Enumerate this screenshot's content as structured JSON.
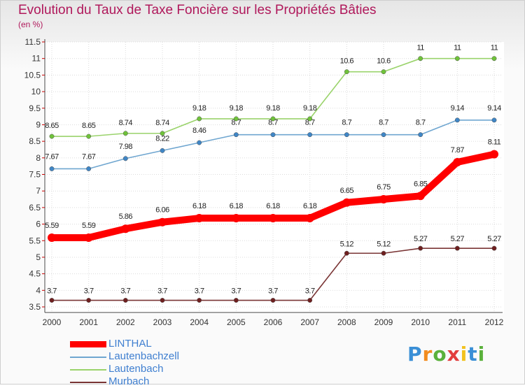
{
  "title": "Evolution du Taux de Taxe Foncière sur les Propriétés Bâties",
  "unit_label": "(en %)",
  "logo": {
    "text": "Proxiti",
    "letters": [
      "P",
      "r",
      "o",
      "x",
      "i",
      "t",
      "i"
    ],
    "letter_colors": [
      "#3a8fd6",
      "#f28c1e",
      "#5ab13b",
      "#e23e3e",
      "#f2c21e",
      "#3a8fd6",
      "#5ab13b"
    ]
  },
  "chart_data": {
    "type": "line",
    "title": "Evolution du Taux de Taxe Foncière sur les Propriétés Bâties",
    "ylabel": "(en %)",
    "xlabel": "",
    "categories": [
      "2000",
      "2001",
      "2002",
      "2003",
      "2004",
      "2005",
      "2006",
      "2007",
      "2008",
      "2009",
      "2010",
      "2011",
      "2012"
    ],
    "ylim": [
      3.5,
      11.5
    ],
    "yticks": [
      "3.5",
      "4",
      "4.5",
      "5",
      "5.5",
      "6",
      "6.5",
      "7",
      "7.5",
      "8",
      "8.5",
      "9",
      "9.5",
      "10",
      "10.5",
      "11",
      "11.5"
    ],
    "grid": true,
    "legend_position": "bottom-left",
    "series": [
      {
        "name": "LINTHAL",
        "color": "#ff0000",
        "marker": "#ff0000",
        "width": "thick",
        "values": [
          5.59,
          5.59,
          5.86,
          6.06,
          6.18,
          6.18,
          6.18,
          6.18,
          6.65,
          6.75,
          6.85,
          7.87,
          8.11
        ],
        "labels": [
          "5.59",
          "5.59",
          "5.86",
          "6.06",
          "6.18",
          "6.18",
          "6.18",
          "6.18",
          "6.65",
          "6.75",
          "6.85",
          "7.87",
          "8.11"
        ]
      },
      {
        "name": "Lautenbachzell",
        "color": "#6fa6d0",
        "marker": "#3f86c6",
        "width": "thin",
        "values": [
          7.67,
          7.67,
          7.98,
          8.22,
          8.46,
          8.7,
          8.7,
          8.7,
          8.7,
          8.7,
          8.7,
          9.14,
          9.14
        ],
        "labels": [
          "7.67",
          "7.67",
          "7.98",
          "8.22",
          "8.46",
          "8.7",
          "8.7",
          "8.7",
          "8.7",
          "8.7",
          "8.7",
          "9.14",
          "9.14"
        ]
      },
      {
        "name": "Lautenbach",
        "color": "#9ad36b",
        "marker": "#6fc23a",
        "width": "thin",
        "values": [
          8.65,
          8.65,
          8.74,
          8.74,
          9.18,
          9.18,
          9.18,
          9.18,
          10.6,
          10.6,
          11,
          11,
          11
        ],
        "labels": [
          "8.65",
          "8.65",
          "8.74",
          "8.74",
          "9.18",
          "9.18",
          "9.18",
          "9.18",
          "10.6",
          "10.6",
          "11",
          "11",
          "11"
        ]
      },
      {
        "name": "Murbach",
        "color": "#7a3535",
        "marker": "#6e1f1f",
        "width": "thin",
        "values": [
          3.7,
          3.7,
          3.7,
          3.7,
          3.7,
          3.7,
          3.7,
          3.7,
          5.12,
          5.12,
          5.27,
          5.27,
          5.27
        ],
        "labels": [
          "3.7",
          "3.7",
          "3.7",
          "3.7",
          "3.7",
          "3.7",
          "3.7",
          "3.7",
          "5.12",
          "5.12",
          "5.27",
          "5.27",
          "5.27"
        ]
      }
    ]
  }
}
